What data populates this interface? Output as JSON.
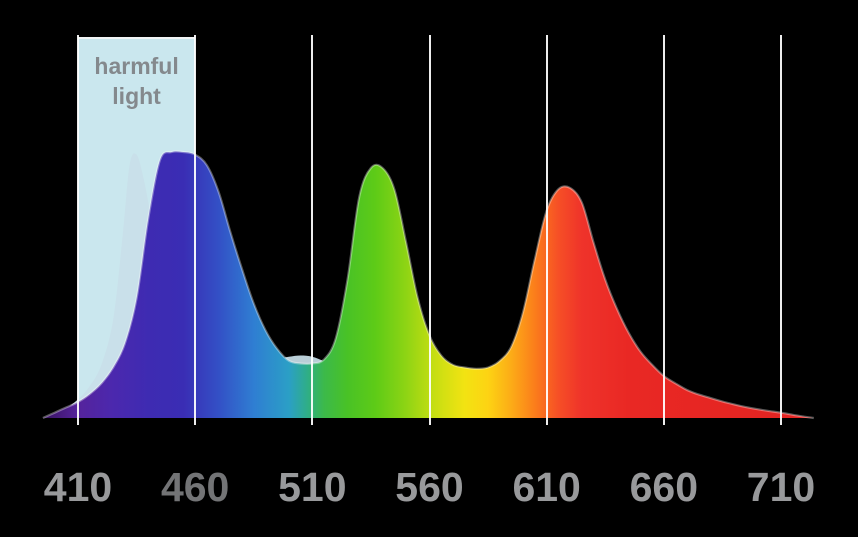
{
  "figure": {
    "background": "#000000"
  },
  "annotations": {
    "harmful": {
      "label": "harmful light"
    }
  },
  "axis": {
    "ticks": [
      {
        "value": 410,
        "color": "#98999b"
      },
      {
        "value": 460,
        "color": "#737476"
      },
      {
        "value": 510,
        "color": "#98999b"
      },
      {
        "value": 560,
        "color": "#98999b"
      },
      {
        "value": 610,
        "color": "#98999b"
      },
      {
        "value": 660,
        "color": "#98999b"
      },
      {
        "value": 710,
        "color": "#98999b"
      }
    ]
  },
  "style": {
    "gridline_color": "rgba(255,255,255,0.93)",
    "harmful_box_fill": "#d3f1f8",
    "harmful_box_opacity": 0.96,
    "harmful_label_color": "#8a8f93",
    "ghost_fill": "#c9dfe9",
    "ghost_opacity": 0.92,
    "rim_highlight": "rgba(255,255,255,0.35)"
  },
  "chart_data": {
    "type": "area",
    "title": "",
    "xlabel": "",
    "ylabel": "",
    "x_ticks": [
      410,
      460,
      510,
      560,
      610,
      660,
      710
    ],
    "xlim": [
      395,
      724
    ],
    "ylim": [
      0,
      1.05
    ],
    "grid": "vertical white gridlines at every x tick, drawn in front of the curves",
    "legend": "none",
    "highlight_region": {
      "x_from": 410,
      "x_to": 460,
      "label": "harmful light"
    },
    "peaks": [
      {
        "series": "main-spectrum",
        "x": 452,
        "y": 1.0,
        "color_zone": "blue"
      },
      {
        "series": "main-spectrum",
        "x": 537,
        "y": 0.94,
        "color_zone": "green"
      },
      {
        "series": "main-spectrum",
        "x": 619,
        "y": 0.865,
        "color_zone": "red"
      },
      {
        "series": "ghost-spectrum",
        "x": 435,
        "y": 0.99,
        "color_zone": "pale blue-white"
      }
    ],
    "series": [
      {
        "name": "main-spectrum",
        "x": [
          395,
          400,
          405,
          410,
          415,
          420,
          425,
          430,
          435,
          440,
          445,
          450,
          455,
          460,
          465,
          470,
          475,
          480,
          485,
          490,
          495,
          500,
          505,
          510,
          515,
          520,
          525,
          530,
          535,
          540,
          545,
          550,
          555,
          560,
          565,
          570,
          575,
          580,
          585,
          590,
          595,
          600,
          605,
          610,
          615,
          620,
          625,
          630,
          635,
          640,
          645,
          650,
          655,
          660,
          665,
          670,
          675,
          680,
          685,
          690,
          695,
          700,
          705,
          710,
          715,
          720,
          724
        ],
        "y": [
          0,
          0.02,
          0.04,
          0.06,
          0.09,
          0.13,
          0.19,
          0.28,
          0.45,
          0.75,
          0.97,
          1.0,
          1.0,
          0.99,
          0.95,
          0.85,
          0.7,
          0.56,
          0.43,
          0.33,
          0.26,
          0.215,
          0.205,
          0.205,
          0.22,
          0.3,
          0.52,
          0.83,
          0.94,
          0.94,
          0.86,
          0.66,
          0.45,
          0.31,
          0.235,
          0.2,
          0.19,
          0.185,
          0.19,
          0.215,
          0.27,
          0.4,
          0.6,
          0.78,
          0.86,
          0.865,
          0.81,
          0.66,
          0.52,
          0.41,
          0.32,
          0.25,
          0.2,
          0.158,
          0.13,
          0.105,
          0.088,
          0.075,
          0.062,
          0.051,
          0.041,
          0.033,
          0.026,
          0.02,
          0.012,
          0.005,
          0
        ]
      },
      {
        "name": "ghost-spectrum",
        "x": [
          398,
          404,
          410,
          415,
          420,
          425,
          429,
          432,
          435,
          438,
          442,
          446,
          450,
          455,
          460,
          465,
          470,
          475,
          480,
          485,
          490,
          495,
          500,
          505,
          510,
          515,
          520,
          525,
          530,
          535,
          540,
          545,
          550,
          555,
          560,
          565,
          570,
          575,
          580
        ],
        "y": [
          0,
          0.03,
          0.07,
          0.12,
          0.2,
          0.37,
          0.68,
          0.95,
          0.99,
          0.9,
          0.72,
          0.55,
          0.42,
          0.3,
          0.235,
          0.205,
          0.195,
          0.19,
          0.193,
          0.2,
          0.21,
          0.222,
          0.23,
          0.235,
          0.23,
          0.213,
          0.19,
          0.163,
          0.138,
          0.11,
          0.085,
          0.064,
          0.047,
          0.033,
          0.022,
          0.013,
          0.007,
          0.002,
          0
        ]
      }
    ],
    "gradient": [
      {
        "wl": 395,
        "color": "#38125f"
      },
      {
        "wl": 410,
        "color": "#55239c"
      },
      {
        "wl": 425,
        "color": "#4b28ae"
      },
      {
        "wl": 440,
        "color": "#3e2bb2"
      },
      {
        "wl": 455,
        "color": "#3a2db4"
      },
      {
        "wl": 470,
        "color": "#3350c6"
      },
      {
        "wl": 485,
        "color": "#2f7ed2"
      },
      {
        "wl": 500,
        "color": "#2b9fc6"
      },
      {
        "wl": 508,
        "color": "#2fae86"
      },
      {
        "wl": 515,
        "color": "#3cb94a"
      },
      {
        "wl": 525,
        "color": "#49c226"
      },
      {
        "wl": 537,
        "color": "#5ecb17"
      },
      {
        "wl": 550,
        "color": "#8ed414"
      },
      {
        "wl": 562,
        "color": "#c6de12"
      },
      {
        "wl": 575,
        "color": "#f2e312"
      },
      {
        "wl": 585,
        "color": "#fdd313"
      },
      {
        "wl": 595,
        "color": "#fcab17"
      },
      {
        "wl": 605,
        "color": "#fb7d1b"
      },
      {
        "wl": 615,
        "color": "#f64f26"
      },
      {
        "wl": 625,
        "color": "#ef332a"
      },
      {
        "wl": 645,
        "color": "#e92824"
      },
      {
        "wl": 724,
        "color": "#e32321"
      }
    ]
  }
}
